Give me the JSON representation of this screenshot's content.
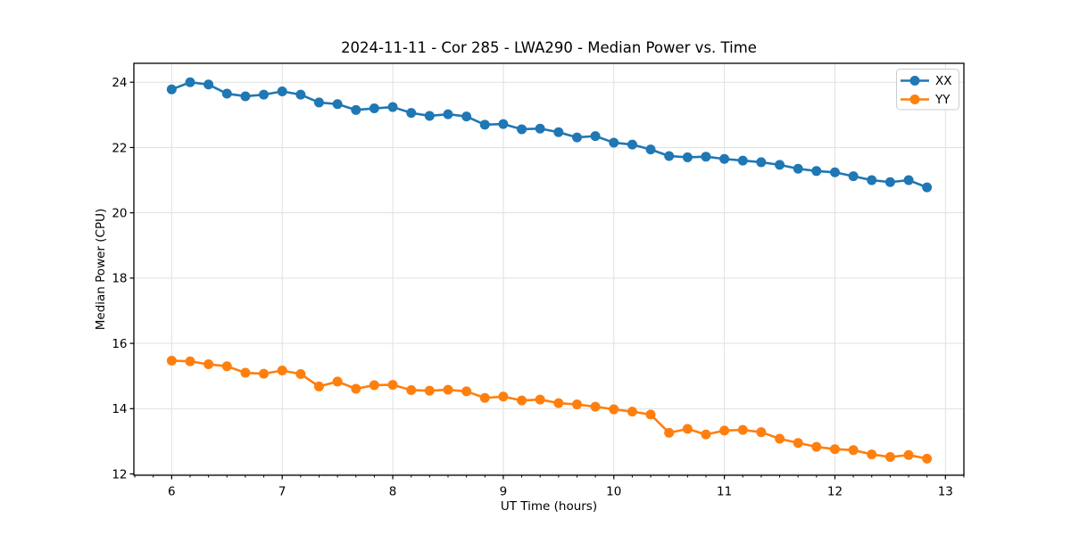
{
  "chart_data": {
    "type": "line",
    "title": "2024-11-11 - Cor 285 - LWA290 - Median Power vs. Time",
    "xlabel": "UT Time (hours)",
    "ylabel": "Median Power (CPU)",
    "x": [
      6.0,
      6.167,
      6.333,
      6.5,
      6.667,
      6.833,
      7.0,
      7.167,
      7.333,
      7.5,
      7.667,
      7.833,
      8.0,
      8.167,
      8.333,
      8.5,
      8.667,
      8.833,
      9.0,
      9.167,
      9.333,
      9.5,
      9.667,
      9.833,
      10.0,
      10.167,
      10.333,
      10.5,
      10.667,
      10.833,
      11.0,
      11.167,
      11.333,
      11.5,
      11.667,
      11.833,
      12.0,
      12.167,
      12.333,
      12.5,
      12.667,
      12.833
    ],
    "series": [
      {
        "name": "XX",
        "color": "#1f77b4",
        "marker": "circle",
        "values": [
          23.78,
          24.0,
          23.93,
          23.65,
          23.57,
          23.62,
          23.72,
          23.62,
          23.38,
          23.33,
          23.15,
          23.2,
          23.24,
          23.06,
          22.97,
          23.02,
          22.95,
          22.7,
          22.72,
          22.56,
          22.58,
          22.47,
          22.31,
          22.35,
          22.15,
          22.09,
          21.94,
          21.74,
          21.7,
          21.72,
          21.65,
          21.6,
          21.55,
          21.47,
          21.35,
          21.28,
          21.24,
          21.12,
          21.0,
          20.94,
          21.0,
          20.78
        ]
      },
      {
        "name": "YY",
        "color": "#ff7f0e",
        "marker": "circle",
        "values": [
          15.47,
          15.45,
          15.36,
          15.3,
          15.1,
          15.07,
          15.17,
          15.06,
          14.68,
          14.83,
          14.61,
          14.72,
          14.73,
          14.57,
          14.55,
          14.58,
          14.53,
          14.33,
          14.37,
          14.25,
          14.28,
          14.17,
          14.13,
          14.06,
          13.98,
          13.91,
          13.82,
          13.26,
          13.38,
          13.21,
          13.33,
          13.35,
          13.28,
          13.08,
          12.95,
          12.83,
          12.76,
          12.73,
          12.6,
          12.52,
          12.58,
          12.47
        ]
      }
    ],
    "xlim": [
      5.658,
      13.167
    ],
    "ylim": [
      11.96,
      24.58
    ],
    "xticks": [
      6,
      7,
      8,
      9,
      10,
      11,
      12,
      13
    ],
    "yticks": [
      12,
      14,
      16,
      18,
      20,
      22,
      24
    ],
    "x_minor_divisions_per_unit": 6,
    "grid": true,
    "grid_color": "#e0e0e0",
    "axis_color": "#000000",
    "legend": {
      "position": "upper right",
      "entries": [
        "XX",
        "YY"
      ]
    }
  }
}
